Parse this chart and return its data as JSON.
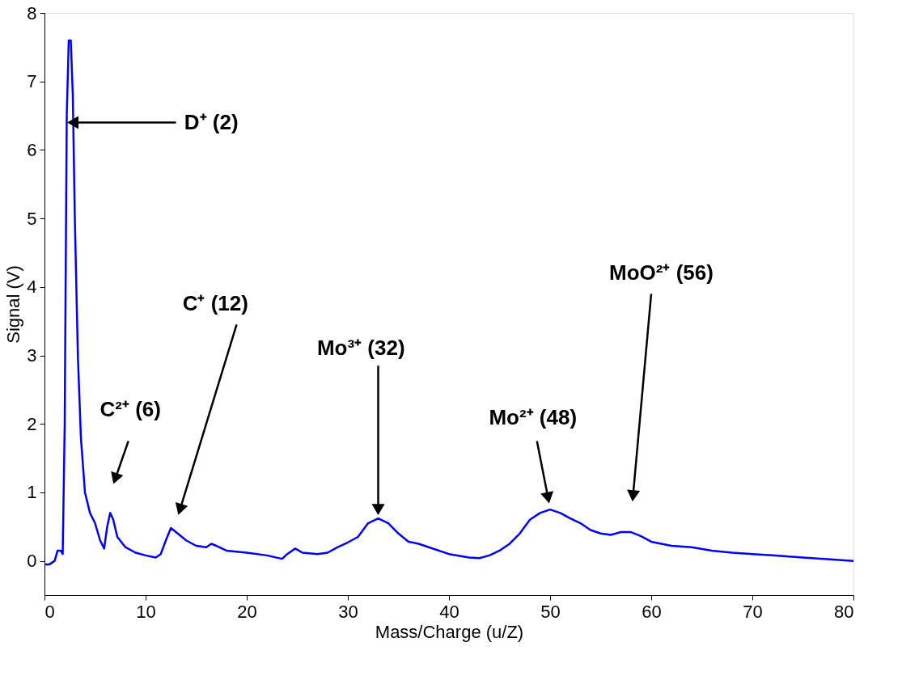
{
  "chart_data": {
    "type": "line",
    "xlabel": "Mass/Charge (u/Z)",
    "ylabel": "Signal (V)",
    "xlim": [
      0,
      80
    ],
    "xticks": [
      0,
      10,
      20,
      30,
      40,
      50,
      60,
      70,
      80
    ],
    "ylim": [
      -0.5,
      8
    ],
    "yticks": [
      0,
      1,
      2,
      3,
      4,
      5,
      6,
      7,
      8
    ],
    "grid": false,
    "marker": "none",
    "line_style": "solid",
    "x": [
      0,
      0.5,
      1,
      1.3,
      1.6,
      1.8,
      2.0,
      2.2,
      2.4,
      2.6,
      2.8,
      3.0,
      3.3,
      3.6,
      4.0,
      4.5,
      5.0,
      5.5,
      5.9,
      6.2,
      6.5,
      6.8,
      7.2,
      8,
      9,
      10,
      11,
      11.5,
      12,
      12.5,
      13,
      14,
      15,
      16,
      16.5,
      17,
      18,
      20,
      22,
      23.5,
      24,
      24.8,
      25.5,
      27,
      28,
      29,
      30,
      31,
      32,
      33,
      34,
      35,
      36,
      37,
      38,
      40,
      42,
      43,
      44,
      45,
      46,
      47,
      48,
      49,
      50,
      51,
      52,
      53,
      54,
      55,
      56,
      57,
      58,
      59,
      60,
      62,
      64,
      66,
      68,
      70,
      72,
      75,
      78,
      80
    ],
    "series": [
      {
        "color": "#0000ff",
        "values": [
          -0.05,
          -0.05,
          0.0,
          0.15,
          0.15,
          0.1,
          2.0,
          6.5,
          7.6,
          7.6,
          6.8,
          5.0,
          3.0,
          1.8,
          1.0,
          0.7,
          0.55,
          0.3,
          0.18,
          0.5,
          0.7,
          0.6,
          0.35,
          0.2,
          0.12,
          0.08,
          0.05,
          0.1,
          0.3,
          0.48,
          0.42,
          0.3,
          0.22,
          0.2,
          0.25,
          0.22,
          0.15,
          0.12,
          0.08,
          0.03,
          0.1,
          0.18,
          0.12,
          0.1,
          0.12,
          0.2,
          0.27,
          0.35,
          0.55,
          0.62,
          0.55,
          0.4,
          0.28,
          0.25,
          0.2,
          0.1,
          0.05,
          0.04,
          0.08,
          0.15,
          0.25,
          0.4,
          0.6,
          0.7,
          0.75,
          0.7,
          0.62,
          0.55,
          0.45,
          0.4,
          0.38,
          0.42,
          0.42,
          0.36,
          0.28,
          0.22,
          0.2,
          0.15,
          0.12,
          0.1,
          0.08,
          0.05,
          0.02,
          0.0
        ]
      }
    ],
    "annotations": [
      {
        "text": "D⁺ (2)",
        "x": 2.8,
        "y": 6.4
      },
      {
        "text": "C²⁺ (6)",
        "x": 7.0,
        "y": 1.2
      },
      {
        "text": "C⁺ (12)",
        "x": 13.4,
        "y": 0.75
      },
      {
        "text": "Mo³⁺ (32)",
        "x": 33.0,
        "y": 0.75
      },
      {
        "text": "Mo²⁺ (48)",
        "x": 49.8,
        "y": 0.92
      },
      {
        "text": "MoO²⁺ (56)",
        "x": 58.2,
        "y": 0.95
      }
    ]
  }
}
